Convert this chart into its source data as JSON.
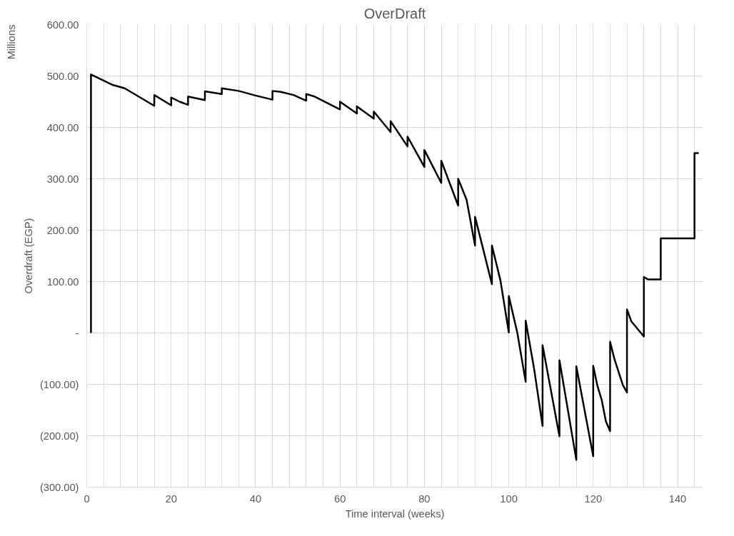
{
  "chart_data": {
    "type": "line",
    "title": "OverDraft",
    "xlabel": "Time interval (weeks)",
    "ylabel": "Overdraft (EGP)",
    "annotations": [
      "Millions"
    ],
    "xlim": [
      0,
      146
    ],
    "ylim": [
      -300,
      600
    ],
    "xticks": [
      0,
      {
        "value": 4,
        "label": null
      },
      {
        "value": 8,
        "label": null
      },
      {
        "value": 12,
        "label": null
      },
      {
        "value": 16,
        "label": null
      },
      20,
      {
        "value": 24,
        "label": null
      },
      {
        "value": 28,
        "label": null
      },
      {
        "value": 32,
        "label": null
      },
      {
        "value": 36,
        "label": null
      },
      40,
      {
        "value": 44,
        "label": null
      },
      {
        "value": 48,
        "label": null
      },
      {
        "value": 52,
        "label": null
      },
      {
        "value": 56,
        "label": null
      },
      60,
      {
        "value": 64,
        "label": null
      },
      {
        "value": 68,
        "label": null
      },
      {
        "value": 72,
        "label": null
      },
      {
        "value": 76,
        "label": null
      },
      80,
      {
        "value": 84,
        "label": null
      },
      {
        "value": 88,
        "label": null
      },
      {
        "value": 92,
        "label": null
      },
      {
        "value": 96,
        "label": null
      },
      100,
      {
        "value": 104,
        "label": null
      },
      {
        "value": 108,
        "label": null
      },
      {
        "value": 112,
        "label": null
      },
      {
        "value": 116,
        "label": null
      },
      120,
      {
        "value": 124,
        "label": null
      },
      {
        "value": 128,
        "label": null
      },
      {
        "value": 132,
        "label": null
      },
      {
        "value": 136,
        "label": null
      },
      140,
      {
        "value": 144,
        "label": null
      }
    ],
    "yticks": [
      {
        "value": -300,
        "label": "(300.00)"
      },
      {
        "value": -200,
        "label": "(200.00)"
      },
      {
        "value": -100,
        "label": "(100.00)"
      },
      {
        "value": 0,
        "label": "-"
      },
      {
        "value": 100,
        "label": "100.00"
      },
      {
        "value": 200,
        "label": "200.00"
      },
      {
        "value": 300,
        "label": "300.00"
      },
      {
        "value": 400,
        "label": "400.00"
      },
      {
        "value": 500,
        "label": "500.00"
      },
      {
        "value": 600,
        "label": "600.00"
      }
    ],
    "grid": true,
    "marker": "none",
    "line_style": "solid",
    "series": [
      {
        "color": "#000000",
        "x": [
          1,
          1,
          6,
          9,
          16,
          16,
          20,
          20,
          22,
          24,
          24,
          28,
          28,
          32,
          32,
          36,
          40,
          44,
          44,
          46,
          49,
          52,
          52,
          54,
          60,
          60,
          64,
          64,
          68,
          68,
          72,
          72,
          76,
          76,
          80,
          80,
          84,
          84,
          88,
          88,
          90,
          92,
          92,
          96,
          96,
          98,
          100,
          100,
          102,
          104,
          104,
          106,
          108,
          108,
          112,
          112,
          116,
          116,
          120,
          120,
          121,
          122,
          123,
          124,
          124,
          125,
          127,
          128,
          128,
          129,
          132,
          132,
          133,
          136,
          136,
          144,
          144,
          145
        ],
        "values": [
          0,
          503,
          483,
          476,
          442,
          463,
          443,
          458,
          450,
          444,
          460,
          453,
          470,
          465,
          476,
          471,
          462,
          454,
          471,
          469,
          463,
          452,
          465,
          460,
          435,
          450,
          427,
          441,
          417,
          431,
          391,
          412,
          363,
          382,
          323,
          356,
          292,
          335,
          248,
          300,
          259,
          170,
          226,
          95,
          170,
          103,
          1,
          72,
          1,
          -95,
          24,
          -70,
          -181,
          -24,
          -201,
          -53,
          -247,
          -65,
          -240,
          -64,
          -103,
          -130,
          -172,
          -191,
          -17,
          -50,
          -101,
          -116,
          46,
          23,
          -7,
          109,
          104,
          104,
          184,
          184,
          350,
          350
        ]
      }
    ]
  }
}
